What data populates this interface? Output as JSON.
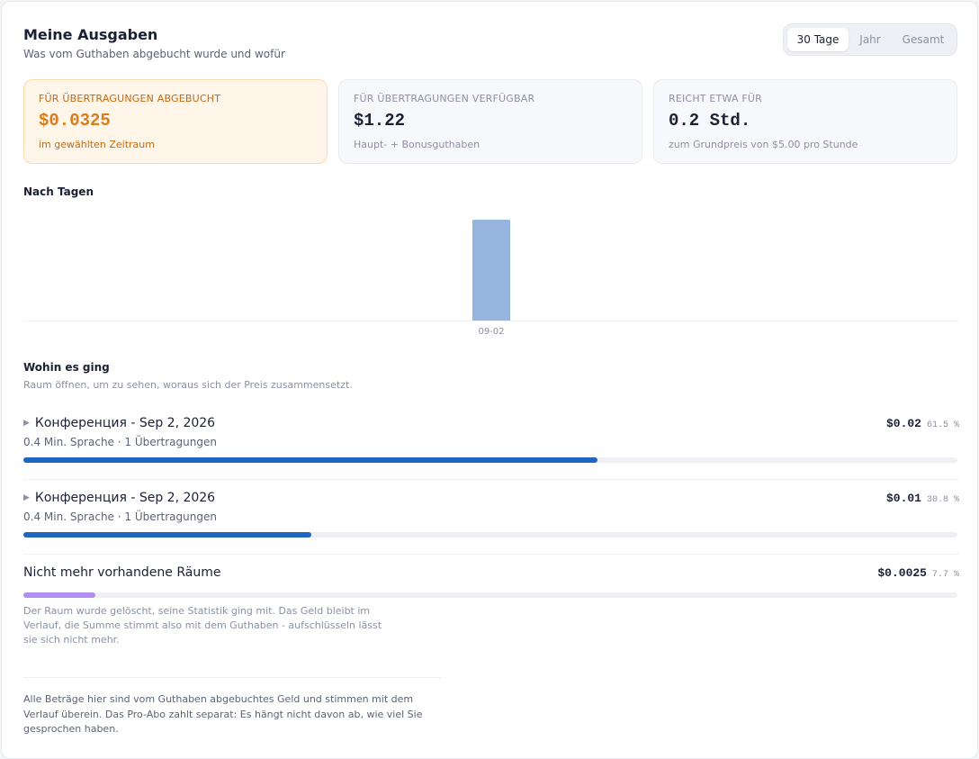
{
  "header": {
    "title": "Meine Ausgaben",
    "subtitle": "Was vom Guthaben abgebucht wurde und wofür"
  },
  "period": {
    "options": [
      "30 Tage",
      "Jahr",
      "Gesamt"
    ],
    "selected": "30 Tage"
  },
  "stats": [
    {
      "label": "FÜR ÜBERTRAGUNGEN ABGEBUCHT",
      "value": "$0.0325",
      "note": "im gewählten Zeitraum"
    },
    {
      "label": "FÜR ÜBERTRAGUNGEN VERFÜGBAR",
      "value": "$1.22",
      "note": "Haupt- + Bonusguthaben"
    },
    {
      "label": "REICHT ETWA FÜR",
      "value": "0.2 Std.",
      "note": "zum Grundpreis von $5.00 pro Stunde"
    }
  ],
  "by_day": {
    "heading": "Nach Tagen"
  },
  "chart_data": {
    "type": "bar",
    "categories": [
      "09-02"
    ],
    "values": [
      0.0325
    ],
    "ylim": [
      0,
      0.0325
    ]
  },
  "breakdown": {
    "heading": "Wohin es ging",
    "hint": "Raum öffnen, um zu sehen, woraus sich der Preis zusammensetzt.",
    "rooms": [
      {
        "name": "Конференция - Sep 2, 2026",
        "meta": "0.4 Min. Sprache · 1 Übertragungen",
        "amount": "$0.02",
        "percent_label": "61.5 %",
        "share": 0.615
      },
      {
        "name": "Конференция - Sep 2, 2026",
        "meta": "0.4 Min. Sprache · 1 Übertragungen",
        "amount": "$0.01",
        "percent_label": "30.8 %",
        "share": 0.308
      }
    ],
    "deleted": {
      "name": "Nicht mehr vorhandene Räume",
      "amount": "$0.0025",
      "percent_label": "7.7 %",
      "share": 0.077,
      "note": "Der Raum wurde gelöscht, seine Statistik ging mit. Das Geld bleibt im Verlauf, die Summe stimmt also mit dem Guthaben - aufschlüsseln lässt sie sich nicht mehr."
    }
  },
  "footer": {
    "note": "Alle Beträge hier sind vom Guthaben abgebuchtes Geld und stimmen mit dem Verlauf überein. Das Pro-Abo zahlt separat: Es hängt nicht davon ab, wie viel Sie gesprochen haben."
  },
  "colors": {
    "accent": "#d97c1c",
    "bar": "#95b4de",
    "progress": "#1e66c1",
    "deleted_progress": "#b48df0"
  }
}
